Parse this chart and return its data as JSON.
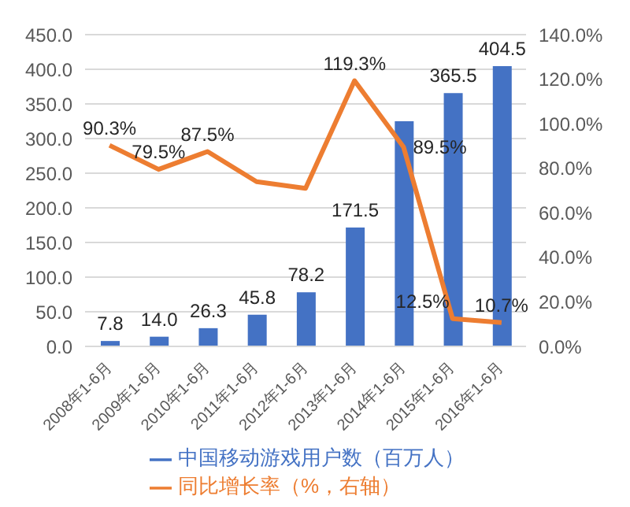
{
  "chart_data": {
    "type": "bar",
    "categories": [
      "2008年1-6月",
      "2009年1-6月",
      "2010年1-6月",
      "2011年1-6月",
      "2012年1-6月",
      "2013年1-6月",
      "2014年1-6月",
      "2015年1-6月",
      "2016年1-6月"
    ],
    "series": [
      {
        "name": "中国移动游戏用户数（百万人）",
        "color": "#4472c4",
        "values": [
          7.8,
          14.0,
          26.3,
          45.8,
          78.2,
          171.5,
          325,
          365.5,
          404.5
        ],
        "value_labels": [
          "7.8",
          "14.0",
          "26.3",
          "45.8",
          "78.2",
          "171.5",
          null,
          "365.5",
          "404.5"
        ]
      },
      {
        "name": "同比增长率（%，右轴）",
        "type": "line",
        "axis": "y2",
        "color": "#ed7d31",
        "values": [
          90.3,
          79.5,
          87.5,
          74,
          71,
          119.3,
          89.5,
          12.5,
          10.7
        ],
        "value_labels": [
          "90.3%",
          "79.5%",
          "87.5%",
          null,
          null,
          "119.3%",
          "89.5%",
          "12.5%",
          "10.7%"
        ]
      }
    ],
    "ylim": [
      0,
      450
    ],
    "yticks": [
      {
        "value": 0,
        "label": "0.0"
      },
      {
        "value": 50,
        "label": "50.0"
      },
      {
        "value": 100,
        "label": "100.0"
      },
      {
        "value": 150,
        "label": "150.0"
      },
      {
        "value": 200,
        "label": "200.0"
      },
      {
        "value": 250,
        "label": "250.0"
      },
      {
        "value": 300,
        "label": "300.0"
      },
      {
        "value": 350,
        "label": "350.0"
      },
      {
        "value": 400,
        "label": "400.0"
      },
      {
        "value": 450,
        "label": "450.0"
      }
    ],
    "y2lim": [
      0,
      140
    ],
    "y2ticks": [
      {
        "value": 0,
        "label": "0.0%"
      },
      {
        "value": 20,
        "label": "20.0%"
      },
      {
        "value": 40,
        "label": "40.0%"
      },
      {
        "value": 60,
        "label": "60.0%"
      },
      {
        "value": 80,
        "label": "80.0%"
      },
      {
        "value": 100,
        "label": "100.0%"
      },
      {
        "value": 120,
        "label": "120.0%"
      },
      {
        "value": 140,
        "label": "140.0%"
      }
    ],
    "grid": "y",
    "legend": "bottom",
    "marker": "none"
  }
}
